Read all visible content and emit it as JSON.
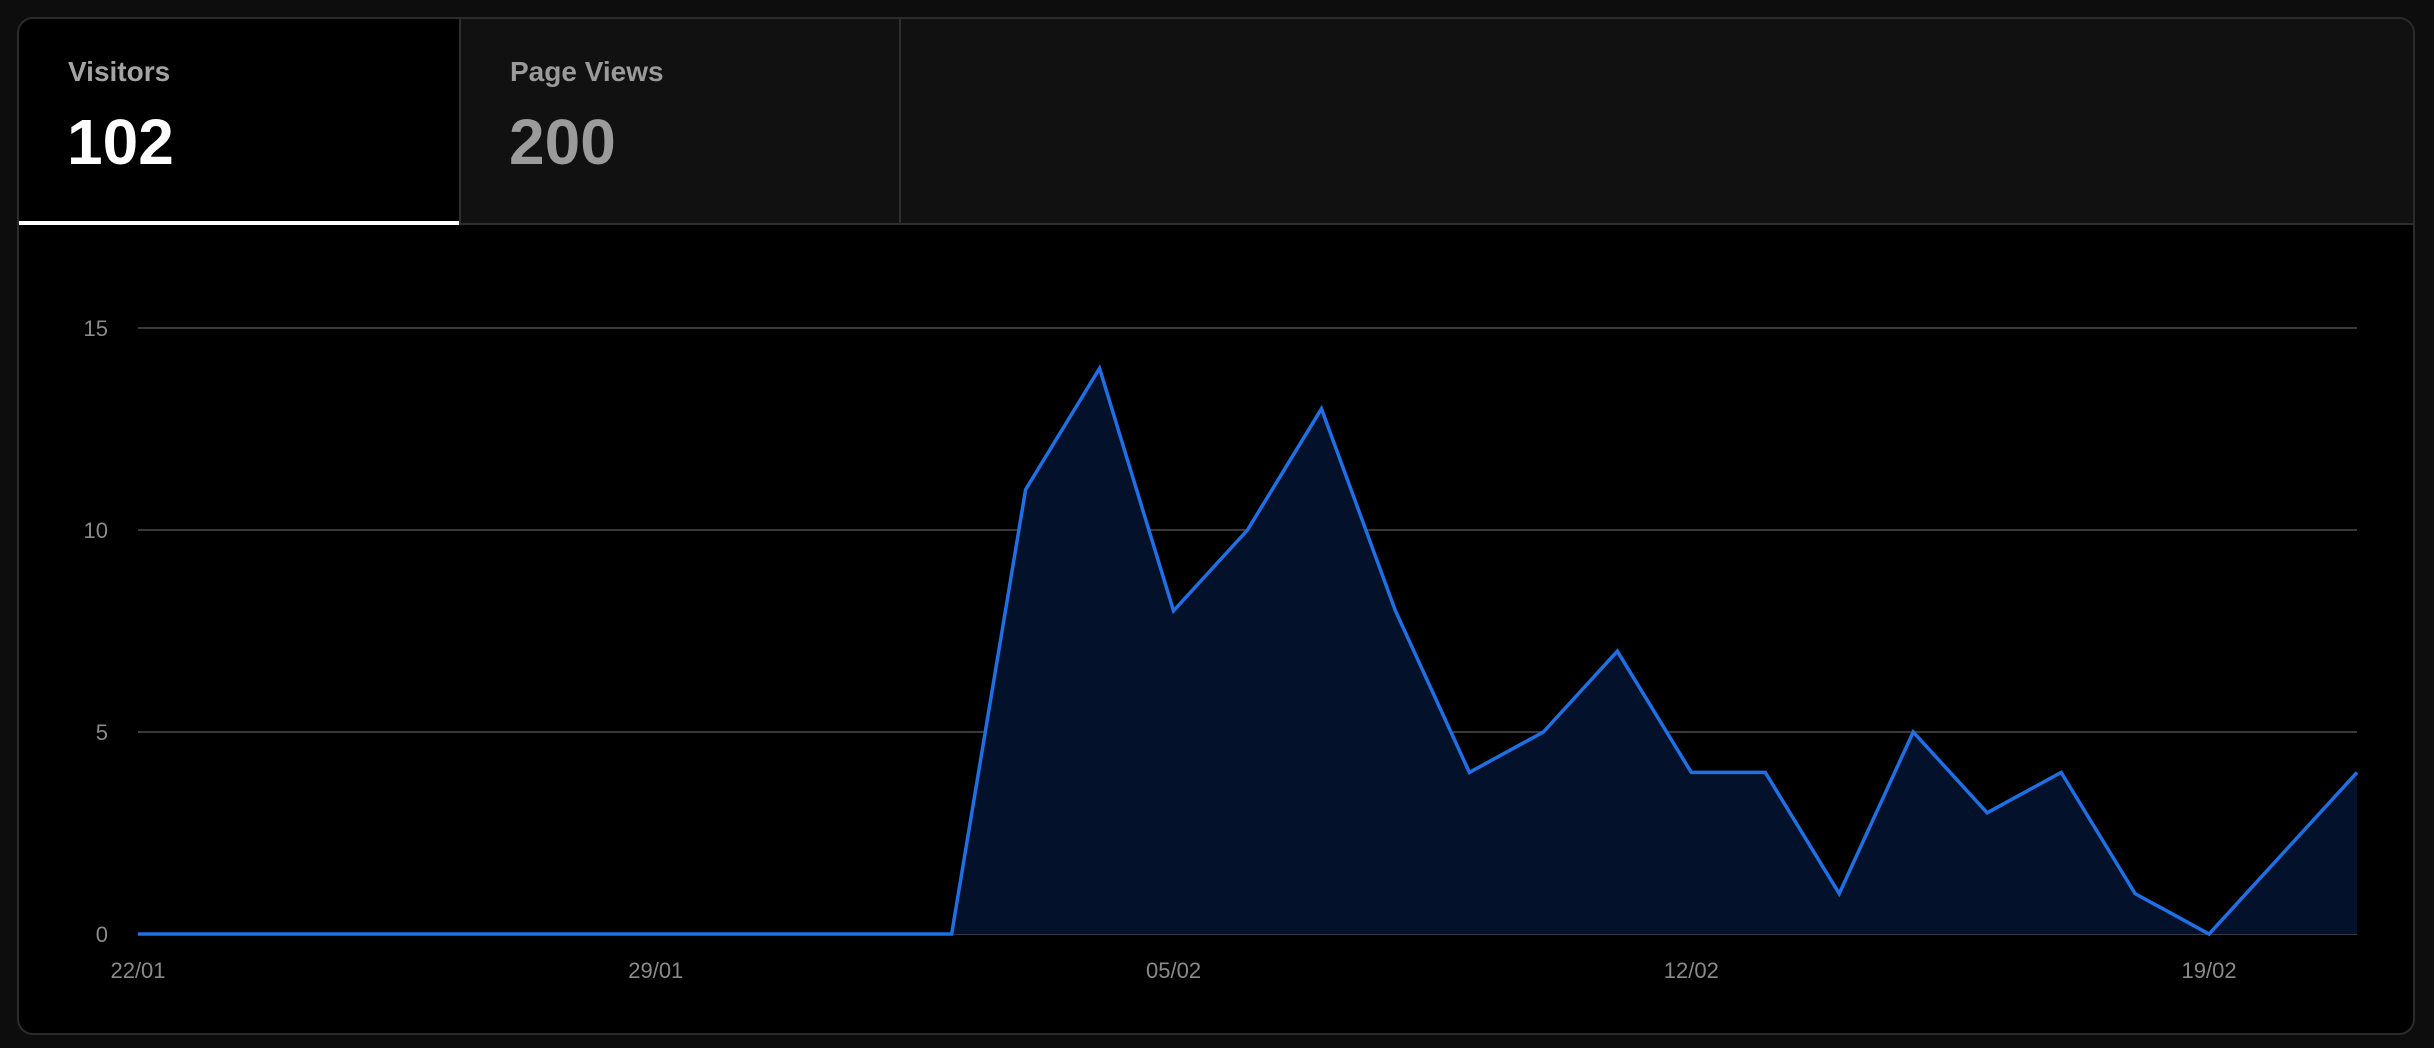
{
  "tabs": [
    {
      "label": "Visitors",
      "value": "102",
      "active": true
    },
    {
      "label": "Page Views",
      "value": "200",
      "active": false
    }
  ],
  "colors": {
    "line": "#1f6fe5",
    "area_fill": "#03122a",
    "grid": "#3a3a3a",
    "tick_text": "#8a8a8a"
  },
  "chart_data": {
    "type": "area",
    "title": "",
    "xlabel": "",
    "ylabel": "",
    "ylim": [
      0,
      15
    ],
    "yticks": [
      "0",
      "5",
      "10",
      "15"
    ],
    "xtick_labels": [
      "22/01",
      "29/01",
      "05/02",
      "12/02",
      "19/02"
    ],
    "grid": true,
    "series": [
      {
        "x": [
          "22/01",
          "23/01",
          "24/01",
          "25/01",
          "26/01",
          "27/01",
          "28/01",
          "29/01",
          "30/01",
          "31/01",
          "01/02",
          "02/02",
          "03/02",
          "04/02",
          "05/02",
          "06/02",
          "07/02",
          "08/02",
          "09/02",
          "10/02",
          "11/02",
          "12/02",
          "13/02",
          "14/02",
          "15/02",
          "16/02",
          "17/02",
          "18/02",
          "19/02",
          "20/02",
          "21/02"
        ],
        "values": [
          0,
          0,
          0,
          0,
          0,
          0,
          0,
          0,
          0,
          0,
          0,
          0,
          11,
          14,
          8,
          10,
          13,
          8,
          4,
          5,
          7,
          4,
          4,
          1,
          5,
          3,
          4,
          1,
          0,
          2,
          4
        ]
      }
    ]
  }
}
